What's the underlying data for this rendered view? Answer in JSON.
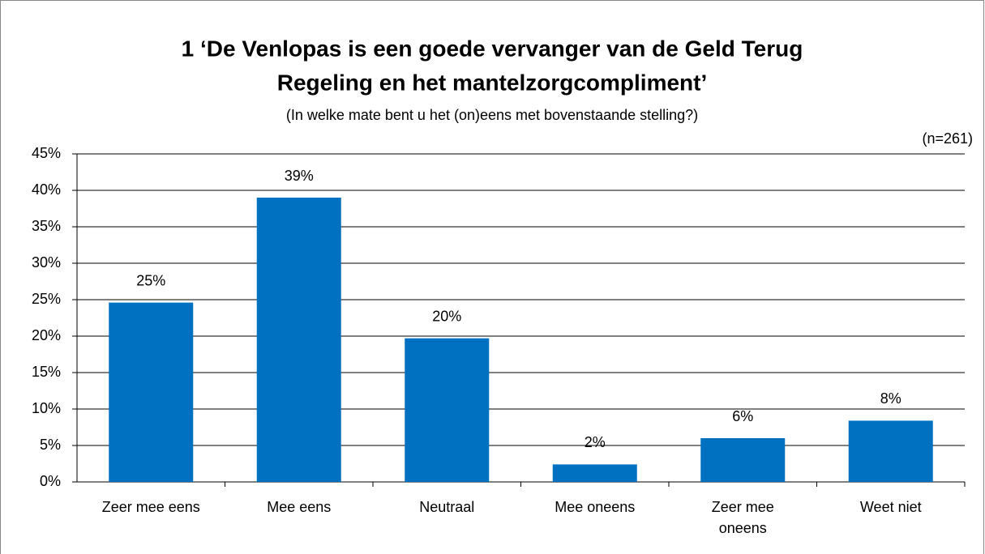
{
  "chart_data": {
    "type": "bar",
    "title": [
      "1 ‘De Venlopas is een goede vervanger van de Geld Terug",
      "Regeling en het mantelzorgcompliment’"
    ],
    "subtitle": "(In welke mate bent u het (on)eens met bovenstaande stelling?)",
    "annotation": "(n=261)",
    "categories": [
      "Zeer mee eens",
      "Mee eens",
      "Neutraal",
      "Mee oneens",
      "Zeer mee oneens",
      "Weet niet"
    ],
    "values": [
      24.6,
      39,
      19.7,
      2.4,
      6,
      8.4
    ],
    "value_labels": [
      "25%",
      "39%",
      "20%",
      "2%",
      "6%",
      "8%"
    ],
    "color": "#0070c0",
    "ylim": [
      0,
      45
    ],
    "yticks": [
      {
        "value": 0,
        "label": "0%"
      },
      {
        "value": 5,
        "label": "5%"
      },
      {
        "value": 10,
        "label": "10%"
      },
      {
        "value": 15,
        "label": "15%"
      },
      {
        "value": 20,
        "label": "20%"
      },
      {
        "value": 25,
        "label": "25%"
      },
      {
        "value": 30,
        "label": "30%"
      },
      {
        "value": 35,
        "label": "35%"
      },
      {
        "value": 40,
        "label": "40%"
      },
      {
        "value": 45,
        "label": "45%"
      }
    ],
    "grid": true
  }
}
